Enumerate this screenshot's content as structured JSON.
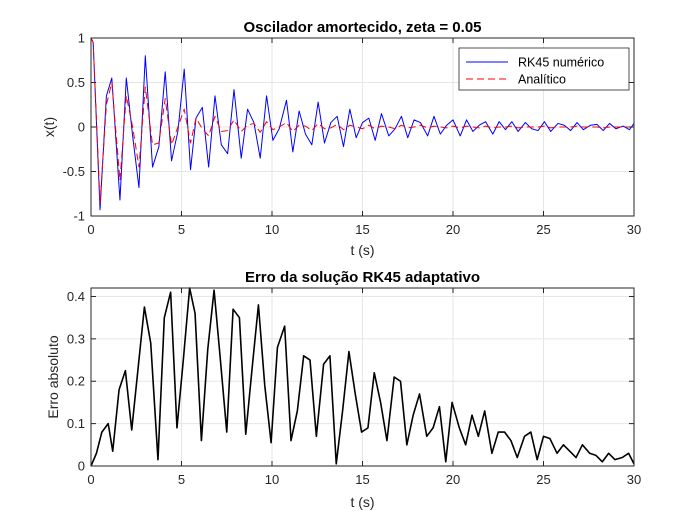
{
  "chart_data": [
    {
      "type": "line",
      "title": "Oscilador amortecido, zeta = 0.05",
      "xlabel": "t (s)",
      "ylabel": "x(t)",
      "xlim": [
        0,
        30
      ],
      "ylim": [
        -1,
        1
      ],
      "xticks": [
        0,
        5,
        10,
        15,
        20,
        25,
        30
      ],
      "yticks": [
        -1,
        -0.5,
        0,
        0.5,
        1
      ],
      "xtick_labels": [
        "0",
        "5",
        "10",
        "15",
        "20",
        "25",
        "30"
      ],
      "ytick_labels": [
        "-1",
        "-0.5",
        "0",
        "0.5",
        "1"
      ],
      "grid": true,
      "legend": "top-right",
      "series": [
        {
          "name": "RK45 numérico",
          "color": "#0000ff",
          "style": "solid",
          "x": [
            0,
            0.12,
            0.5,
            0.85,
            1.15,
            1.6,
            1.95,
            2.3,
            2.65,
            3.0,
            3.4,
            3.75,
            4.1,
            4.45,
            4.8,
            5.15,
            5.5,
            5.8,
            6.15,
            6.5,
            6.85,
            7.2,
            7.55,
            7.9,
            8.3,
            8.65,
            9.0,
            9.35,
            9.7,
            10.05,
            10.4,
            10.8,
            11.15,
            11.5,
            11.85,
            12.2,
            12.55,
            12.9,
            13.25,
            13.6,
            13.95,
            14.3,
            14.65,
            15.0,
            15.35,
            15.7,
            16.05,
            16.45,
            16.8,
            17.15,
            17.5,
            17.85,
            18.2,
            18.6,
            18.95,
            19.3,
            19.65,
            20.0,
            20.4,
            20.75,
            21.1,
            21.45,
            21.8,
            22.2,
            22.55,
            22.9,
            23.25,
            23.6,
            24.0,
            24.35,
            24.7,
            25.05,
            25.4,
            25.8,
            26.15,
            26.5,
            26.85,
            27.2,
            27.6,
            27.95,
            28.3,
            28.65,
            29.0,
            29.4,
            29.75,
            30.0
          ],
          "y": [
            1.0,
            0.95,
            -0.93,
            0.35,
            0.55,
            -0.82,
            0.55,
            -0.1,
            -0.68,
            0.8,
            -0.45,
            -0.22,
            0.62,
            -0.38,
            -0.05,
            0.65,
            -0.48,
            0.1,
            0.22,
            -0.45,
            0.35,
            -0.2,
            -0.3,
            0.42,
            -0.35,
            0.2,
            0.05,
            -0.35,
            0.35,
            -0.15,
            -0.02,
            0.3,
            -0.28,
            0.18,
            -0.08,
            -0.2,
            0.28,
            -0.18,
            0.05,
            0.12,
            -0.22,
            0.2,
            -0.12,
            0.05,
            0.1,
            -0.15,
            0.15,
            -0.1,
            -0.02,
            0.12,
            -0.12,
            0.08,
            0.05,
            -0.1,
            0.12,
            -0.08,
            0.02,
            0.08,
            -0.1,
            0.08,
            -0.05,
            0.02,
            0.06,
            -0.08,
            0.06,
            -0.03,
            0.06,
            -0.05,
            0.05,
            -0.02,
            -0.04,
            0.06,
            -0.05,
            0.04,
            0.02,
            -0.04,
            0.05,
            -0.03,
            0.02,
            0.03,
            -0.04,
            0.04,
            -0.02,
            0.01,
            -0.03,
            0.04
          ]
        },
        {
          "name": "Analítico",
          "color": "#ff0000",
          "style": "dashed",
          "x": [
            0,
            0.12,
            0.5,
            0.85,
            1.15,
            1.6,
            1.95,
            2.3,
            2.65,
            3.0,
            3.4,
            3.75,
            4.1,
            4.45,
            4.8,
            5.15,
            5.5,
            5.8,
            6.15,
            6.5,
            6.85,
            7.2,
            7.55,
            7.9,
            8.3,
            8.65,
            9.0,
            9.35,
            9.7,
            10.05,
            10.4,
            10.8,
            11.15,
            11.5,
            11.85,
            12.2,
            12.55,
            12.9,
            13.25,
            13.6,
            13.95,
            14.3,
            14.65,
            15.0,
            15.35,
            15.7,
            16.05,
            16.45,
            16.8,
            17.15,
            17.5,
            17.85,
            18.2,
            18.6,
            18.95,
            19.3,
            19.65,
            20.0,
            20.4,
            20.75,
            21.1,
            21.45,
            21.8,
            22.2,
            22.55,
            22.9,
            23.25,
            23.6,
            24.0,
            24.35,
            24.7,
            25.05,
            25.4,
            25.8,
            26.15,
            26.5,
            26.85,
            27.2,
            27.6,
            27.95,
            28.3,
            28.65,
            29.0,
            29.4,
            29.75,
            30.0
          ],
          "y": [
            1.0,
            0.95,
            -0.85,
            0.25,
            0.5,
            -0.6,
            0.35,
            0.0,
            -0.45,
            0.45,
            -0.2,
            -0.18,
            0.32,
            -0.2,
            0.0,
            0.2,
            -0.18,
            0.1,
            -0.02,
            -0.1,
            0.12,
            -0.05,
            -0.04,
            0.08,
            -0.05,
            0.02,
            0.04,
            -0.06,
            0.06,
            -0.03,
            0.0,
            0.05,
            -0.05,
            0.02,
            0.01,
            -0.04,
            0.04,
            -0.02,
            -0.01,
            0.03,
            -0.03,
            0.02,
            0.0,
            -0.02,
            0.02,
            -0.02,
            0.01,
            0.0,
            -0.02,
            0.02,
            -0.01,
            0.0,
            0.02,
            -0.01,
            0.01,
            0.0,
            -0.01,
            0.01,
            -0.01,
            0.01,
            0.0,
            -0.01,
            0.01,
            -0.01,
            0.0,
            0.0,
            0.01,
            -0.01,
            0.0,
            0.0,
            0.0,
            0.01,
            -0.01,
            0.0,
            0.0,
            0.0,
            0.01,
            0.0,
            0.0,
            0.0,
            -0.01,
            0.0,
            0.0,
            0.0,
            0.0,
            0.0
          ]
        }
      ]
    },
    {
      "type": "line",
      "title": "Erro da solução RK45 adaptativo",
      "xlabel": "t (s)",
      "ylabel": "Erro absoluto",
      "xlim": [
        0,
        30
      ],
      "ylim": [
        0,
        0.42
      ],
      "xticks": [
        0,
        5,
        10,
        15,
        20,
        25,
        30
      ],
      "yticks": [
        0,
        0.1,
        0.2,
        0.3,
        0.4
      ],
      "xtick_labels": [
        "0",
        "5",
        "10",
        "15",
        "20",
        "25",
        "30"
      ],
      "ytick_labels": [
        "0",
        "0.1",
        "0.2",
        "0.3",
        "0.4"
      ],
      "grid": true,
      "series": [
        {
          "color": "#000000",
          "style": "solid",
          "x": [
            0,
            0.3,
            0.6,
            0.95,
            1.2,
            1.55,
            1.9,
            2.25,
            2.6,
            2.95,
            3.3,
            3.7,
            4.05,
            4.4,
            4.75,
            5.1,
            5.45,
            5.75,
            6.1,
            6.45,
            6.8,
            7.15,
            7.5,
            7.85,
            8.2,
            8.55,
            8.9,
            9.25,
            9.6,
            9.95,
            10.3,
            10.7,
            11.05,
            11.4,
            11.75,
            12.1,
            12.45,
            12.85,
            13.2,
            13.55,
            13.9,
            14.25,
            14.6,
            14.95,
            15.3,
            15.65,
            16.0,
            16.35,
            16.75,
            17.1,
            17.45,
            17.8,
            18.15,
            18.55,
            18.9,
            19.25,
            19.6,
            19.95,
            20.35,
            20.7,
            21.05,
            21.4,
            21.75,
            22.15,
            22.5,
            22.85,
            23.2,
            23.55,
            23.95,
            24.3,
            24.65,
            25.0,
            25.35,
            25.75,
            26.1,
            26.45,
            26.8,
            27.15,
            27.55,
            27.9,
            28.25,
            28.6,
            28.95,
            29.35,
            29.7,
            30.0
          ],
          "y": [
            0.0,
            0.03,
            0.08,
            0.1,
            0.035,
            0.18,
            0.225,
            0.085,
            0.23,
            0.375,
            0.29,
            0.015,
            0.35,
            0.41,
            0.09,
            0.25,
            0.42,
            0.36,
            0.06,
            0.275,
            0.415,
            0.25,
            0.08,
            0.37,
            0.35,
            0.075,
            0.23,
            0.38,
            0.19,
            0.055,
            0.28,
            0.33,
            0.06,
            0.13,
            0.26,
            0.25,
            0.07,
            0.24,
            0.26,
            0.005,
            0.13,
            0.27,
            0.17,
            0.08,
            0.09,
            0.22,
            0.15,
            0.06,
            0.21,
            0.2,
            0.05,
            0.12,
            0.17,
            0.07,
            0.09,
            0.14,
            0.01,
            0.15,
            0.09,
            0.05,
            0.12,
            0.07,
            0.13,
            0.03,
            0.08,
            0.08,
            0.06,
            0.02,
            0.07,
            0.08,
            0.015,
            0.07,
            0.065,
            0.03,
            0.05,
            0.035,
            0.02,
            0.05,
            0.03,
            0.025,
            0.01,
            0.03,
            0.015,
            0.02,
            0.03,
            0.005
          ]
        }
      ]
    }
  ]
}
